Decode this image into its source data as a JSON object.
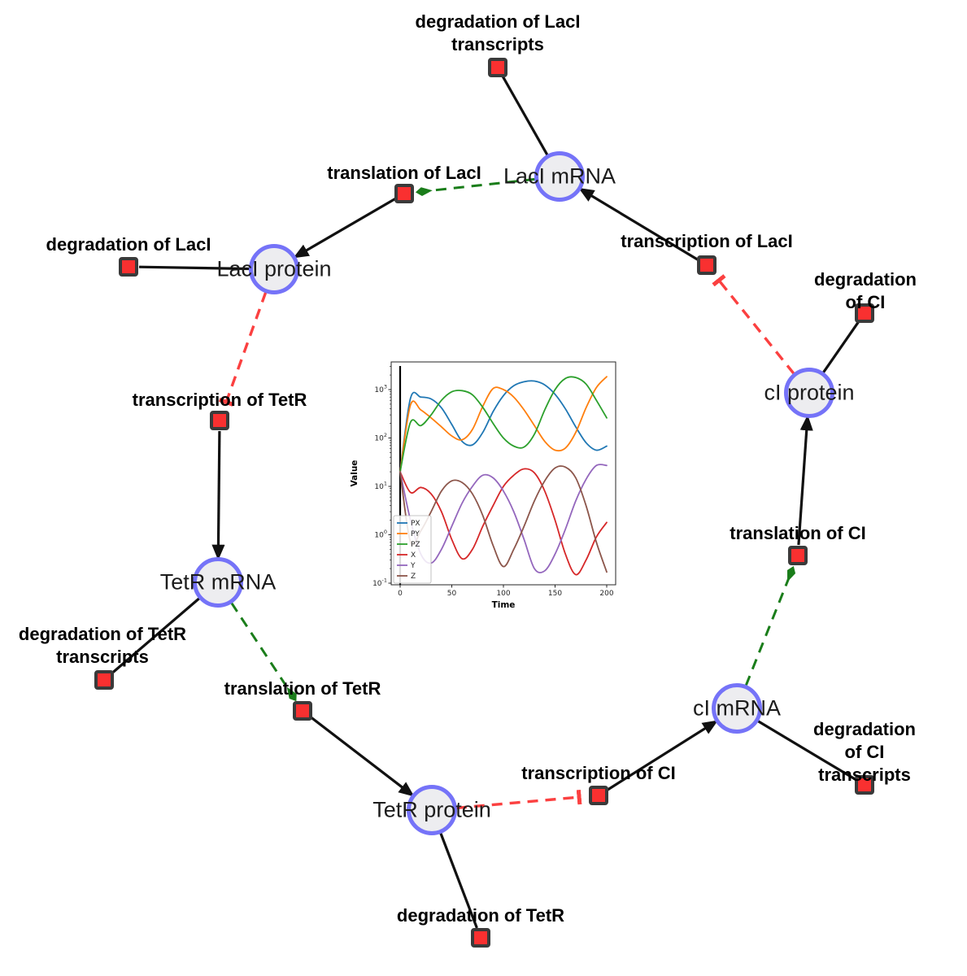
{
  "figure": {
    "background": "#ffffff",
    "description": "Repressilator gene regulatory network with inset simulation time-series plot"
  },
  "network": {
    "species": [
      {
        "id": "laci-mrna",
        "label": "LacI mRNA"
      },
      {
        "id": "laci-protein",
        "label": "LacI protein"
      },
      {
        "id": "tetr-mrna",
        "label": "TetR mRNA"
      },
      {
        "id": "tetr-protein",
        "label": "TetR protein"
      },
      {
        "id": "ci-mrna",
        "label": "cI mRNA"
      },
      {
        "id": "ci-protein",
        "label": "cI protein"
      }
    ],
    "reactions": [
      {
        "id": "deg-laci-transcripts",
        "label": "degradation of LacI\ntranscripts"
      },
      {
        "id": "translation-laci",
        "label": "translation of LacI"
      },
      {
        "id": "deg-laci",
        "label": "degradation of LacI"
      },
      {
        "id": "transcription-laci",
        "label": "transcription of LacI"
      },
      {
        "id": "deg-ci",
        "label": "degradation of CI"
      },
      {
        "id": "transcription-tetr",
        "label": "transcription of TetR"
      },
      {
        "id": "deg-tetr-transcripts",
        "label": "degradation of TetR\ntranscripts"
      },
      {
        "id": "translation-tetr",
        "label": "translation of TetR"
      },
      {
        "id": "deg-tetr",
        "label": "degradation of TetR"
      },
      {
        "id": "transcription-ci",
        "label": "transcription of CI"
      },
      {
        "id": "deg-ci-transcripts",
        "label": "degradation of CI\ntranscripts"
      },
      {
        "id": "translation-ci",
        "label": "translation of CI"
      }
    ],
    "edges": [
      {
        "from": "LacI mRNA",
        "to": "degradation of LacI transcripts",
        "type": "consumption"
      },
      {
        "from": "translation of LacI",
        "to": "LacI protein",
        "type": "production"
      },
      {
        "from": "LacI mRNA",
        "to": "translation of LacI",
        "type": "modifier"
      },
      {
        "from": "transcription of LacI",
        "to": "LacI mRNA",
        "type": "production"
      },
      {
        "from": "LacI protein",
        "to": "degradation of LacI",
        "type": "consumption"
      },
      {
        "from": "LacI protein",
        "to": "transcription of TetR",
        "type": "inhibition"
      },
      {
        "from": "transcription of TetR",
        "to": "TetR mRNA",
        "type": "production"
      },
      {
        "from": "TetR mRNA",
        "to": "degradation of TetR transcripts",
        "type": "consumption"
      },
      {
        "from": "TetR mRNA",
        "to": "translation of TetR",
        "type": "modifier"
      },
      {
        "from": "translation of TetR",
        "to": "TetR protein",
        "type": "production"
      },
      {
        "from": "TetR protein",
        "to": "degradation of TetR",
        "type": "consumption"
      },
      {
        "from": "TetR protein",
        "to": "transcription of CI",
        "type": "inhibition"
      },
      {
        "from": "transcription of CI",
        "to": "cI mRNA",
        "type": "production"
      },
      {
        "from": "cI mRNA",
        "to": "degradation of CI transcripts",
        "type": "consumption"
      },
      {
        "from": "cI mRNA",
        "to": "translation of CI",
        "type": "modifier"
      },
      {
        "from": "translation of CI",
        "to": "cI protein",
        "type": "production"
      },
      {
        "from": "cI protein",
        "to": "degradation of CI",
        "type": "consumption"
      },
      {
        "from": "cI protein",
        "to": "transcription of LacI",
        "type": "inhibition"
      }
    ],
    "colors": {
      "species_fill": "#ededf0",
      "species_border": "#7573f8",
      "reaction_fill": "#f93030",
      "reaction_border": "#3a3a3a",
      "consumption_edge": "#111111",
      "production_edge": "#111111",
      "modifier_edge": "#1a7d1a",
      "inhibition_edge": "#fb4040"
    }
  },
  "chart_data": {
    "type": "line",
    "title": "",
    "xlabel": "Time",
    "ylabel": "Value",
    "y_scale": "log",
    "x_ticks": [
      0,
      50,
      100,
      150,
      200
    ],
    "y_tick_exponents": [
      -1,
      0,
      1,
      2,
      3
    ],
    "xlim": [
      -9,
      209
    ],
    "ylim": [
      0.09,
      3700
    ],
    "grid": false,
    "legend_position": "lower left",
    "annotations": {
      "vline_x": 0
    },
    "x": [
      0,
      10,
      20,
      30,
      40,
      50,
      60,
      70,
      80,
      90,
      100,
      110,
      120,
      130,
      140,
      150,
      160,
      170,
      180,
      190,
      200
    ],
    "series": [
      {
        "name": "PX",
        "color": "#1f77b4",
        "values": [
          20,
          660,
          700,
          640,
          420,
          190,
          85,
          72,
          130,
          350,
          750,
          1200,
          1450,
          1500,
          1250,
          800,
          400,
          170,
          80,
          56,
          68
        ]
      },
      {
        "name": "PY",
        "color": "#ff7f0e",
        "values": [
          20,
          480,
          380,
          260,
          170,
          110,
          92,
          150,
          450,
          1050,
          1000,
          700,
          380,
          180,
          85,
          56,
          62,
          130,
          420,
          1100,
          1850
        ]
      },
      {
        "name": "PZ",
        "color": "#2ca02c",
        "values": [
          20,
          210,
          180,
          300,
          600,
          900,
          950,
          780,
          430,
          200,
          100,
          68,
          65,
          120,
          380,
          1000,
          1700,
          1780,
          1300,
          600,
          260
        ]
      },
      {
        "name": "X",
        "color": "#d62728",
        "values": [
          20,
          7.5,
          9.5,
          7,
          3,
          0.8,
          0.32,
          0.5,
          1.5,
          4,
          10,
          17,
          23,
          19,
          8,
          2,
          0.4,
          0.15,
          0.3,
          0.9,
          1.8
        ]
      },
      {
        "name": "Y",
        "color": "#9467bd",
        "values": [
          20,
          2,
          0.4,
          0.26,
          0.5,
          1.5,
          4.5,
          10,
          17,
          15,
          8,
          3,
          0.8,
          0.2,
          0.18,
          0.4,
          1.3,
          5,
          14,
          27,
          27
        ]
      },
      {
        "name": "Z",
        "color": "#8c564b",
        "values": [
          20,
          0.7,
          1.2,
          3,
          8,
          13,
          12,
          7,
          2.5,
          0.6,
          0.22,
          0.5,
          1.5,
          5,
          13,
          24,
          25,
          15,
          4,
          0.7,
          0.17
        ]
      }
    ]
  }
}
